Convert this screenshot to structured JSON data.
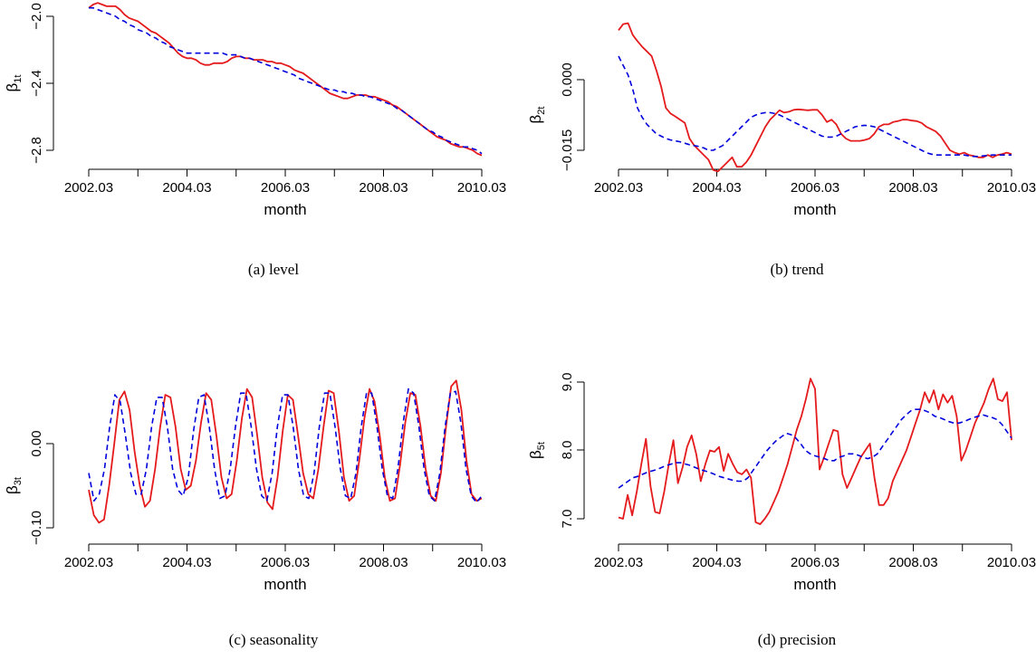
{
  "figure": {
    "x_axis_label": "month",
    "x_ticks": [
      "2002.03",
      "2004.03",
      "2006.03",
      "2008.03",
      "2010.03"
    ],
    "colors": {
      "series_1": "#e41a1c",
      "series_2": "#0000dd"
    }
  },
  "chart_data": [
    {
      "type": "line",
      "id": "a",
      "caption": "(a) level",
      "ylabel": {
        "symbol": "β",
        "sub": "1t"
      },
      "xlabel": "month",
      "x_start": "2002.03",
      "x_step": "1 month",
      "y_ticks": [
        "−2.0",
        "−2.4",
        "−2.8"
      ],
      "ylim": [
        -2.84,
        -1.94
      ],
      "series": [
        {
          "style": "solid red",
          "values": [
            -1.95,
            -1.93,
            -1.92,
            -1.93,
            -1.94,
            -1.94,
            -1.94,
            -1.96,
            -1.99,
            -2.01,
            -2.02,
            -2.03,
            -2.05,
            -2.07,
            -2.09,
            -2.1,
            -2.12,
            -2.14,
            -2.16,
            -2.19,
            -2.22,
            -2.24,
            -2.25,
            -2.25,
            -2.26,
            -2.28,
            -2.29,
            -2.29,
            -2.28,
            -2.28,
            -2.28,
            -2.27,
            -2.25,
            -2.24,
            -2.24,
            -2.25,
            -2.25,
            -2.26,
            -2.26,
            -2.26,
            -2.27,
            -2.27,
            -2.28,
            -2.28,
            -2.29,
            -2.3,
            -2.32,
            -2.33,
            -2.34,
            -2.36,
            -2.38,
            -2.4,
            -2.42,
            -2.44,
            -2.46,
            -2.47,
            -2.48,
            -2.49,
            -2.49,
            -2.48,
            -2.47,
            -2.47,
            -2.47,
            -2.48,
            -2.48,
            -2.49,
            -2.5,
            -2.51,
            -2.53,
            -2.54,
            -2.56,
            -2.58,
            -2.6,
            -2.62,
            -2.64,
            -2.66,
            -2.68,
            -2.7,
            -2.72,
            -2.73,
            -2.74,
            -2.76,
            -2.77,
            -2.78,
            -2.78,
            -2.79,
            -2.8,
            -2.82,
            -2.83
          ]
        },
        {
          "style": "dashed blue",
          "values": [
            -1.95,
            -1.95,
            -1.96,
            -1.97,
            -1.98,
            -1.99,
            -2.0,
            -2.02,
            -2.03,
            -2.05,
            -2.06,
            -2.08,
            -2.09,
            -2.1,
            -2.12,
            -2.13,
            -2.15,
            -2.16,
            -2.18,
            -2.19,
            -2.2,
            -2.21,
            -2.22,
            -2.22,
            -2.22,
            -2.22,
            -2.22,
            -2.22,
            -2.22,
            -2.22,
            -2.22,
            -2.23,
            -2.23,
            -2.23,
            -2.24,
            -2.25,
            -2.25,
            -2.26,
            -2.27,
            -2.28,
            -2.29,
            -2.3,
            -2.31,
            -2.32,
            -2.33,
            -2.34,
            -2.35,
            -2.37,
            -2.38,
            -2.39,
            -2.4,
            -2.41,
            -2.42,
            -2.43,
            -2.44,
            -2.44,
            -2.45,
            -2.45,
            -2.46,
            -2.46,
            -2.47,
            -2.47,
            -2.48,
            -2.48,
            -2.49,
            -2.5,
            -2.51,
            -2.52,
            -2.53,
            -2.55,
            -2.56,
            -2.58,
            -2.6,
            -2.62,
            -2.64,
            -2.66,
            -2.68,
            -2.69,
            -2.71,
            -2.72,
            -2.74,
            -2.75,
            -2.76,
            -2.77,
            -2.78,
            -2.78,
            -2.79,
            -2.8,
            -2.82
          ]
        }
      ]
    },
    {
      "type": "line",
      "id": "b",
      "caption": "(b) trend",
      "ylabel": {
        "symbol": "β",
        "sub": "2t"
      },
      "xlabel": "month",
      "x_start": "2002.03",
      "x_step": "1 month",
      "y_ticks": [
        "0.000",
        "−0.015"
      ],
      "ylim": [
        -0.0195,
        0.0118
      ],
      "series": [
        {
          "style": "solid red",
          "values": [
            0.0105,
            0.0118,
            0.012,
            0.0095,
            0.0082,
            0.007,
            0.006,
            0.005,
            0.002,
            -0.0015,
            -0.006,
            -0.0072,
            -0.0078,
            -0.0085,
            -0.0092,
            -0.0125,
            -0.014,
            -0.015,
            -0.016,
            -0.017,
            -0.0192,
            -0.0195,
            -0.0185,
            -0.0175,
            -0.0165,
            -0.0185,
            -0.0185,
            -0.0175,
            -0.016,
            -0.014,
            -0.012,
            -0.01,
            -0.0085,
            -0.0075,
            -0.0065,
            -0.007,
            -0.0068,
            -0.0064,
            -0.0063,
            -0.0064,
            -0.0065,
            -0.0064,
            -0.0064,
            -0.0075,
            -0.009,
            -0.0085,
            -0.0095,
            -0.0115,
            -0.0125,
            -0.013,
            -0.013,
            -0.013,
            -0.0128,
            -0.0125,
            -0.0115,
            -0.01,
            -0.0095,
            -0.0095,
            -0.009,
            -0.0088,
            -0.0085,
            -0.0085,
            -0.0087,
            -0.0088,
            -0.0092,
            -0.01,
            -0.0105,
            -0.011,
            -0.012,
            -0.0135,
            -0.015,
            -0.0155,
            -0.0158,
            -0.0155,
            -0.016,
            -0.0162,
            -0.0165,
            -0.0165,
            -0.016,
            -0.0165,
            -0.016,
            -0.0158,
            -0.0155,
            -0.0158
          ]
        },
        {
          "style": "dashed blue",
          "values": [
            0.005,
            0.003,
            0.001,
            -0.002,
            -0.006,
            -0.008,
            -0.0095,
            -0.0105,
            -0.0115,
            -0.012,
            -0.0125,
            -0.0128,
            -0.013,
            -0.0132,
            -0.0135,
            -0.0138,
            -0.014,
            -0.0142,
            -0.0145,
            -0.015,
            -0.015,
            -0.0145,
            -0.014,
            -0.013,
            -0.012,
            -0.011,
            -0.01,
            -0.009,
            -0.008,
            -0.0075,
            -0.0072,
            -0.007,
            -0.007,
            -0.0072,
            -0.0075,
            -0.008,
            -0.0085,
            -0.009,
            -0.0095,
            -0.01,
            -0.0105,
            -0.011,
            -0.0115,
            -0.012,
            -0.0122,
            -0.0122,
            -0.012,
            -0.0115,
            -0.011,
            -0.0105,
            -0.01,
            -0.0098,
            -0.0097,
            -0.0098,
            -0.01,
            -0.0105,
            -0.011,
            -0.0115,
            -0.012,
            -0.0125,
            -0.013,
            -0.0135,
            -0.014,
            -0.0145,
            -0.015,
            -0.0155,
            -0.0158,
            -0.016,
            -0.016,
            -0.016,
            -0.016,
            -0.016,
            -0.016,
            -0.016,
            -0.0162,
            -0.0163,
            -0.0163,
            -0.0162,
            -0.0161,
            -0.016,
            -0.016,
            -0.016,
            -0.016,
            -0.016
          ]
        }
      ]
    },
    {
      "type": "line",
      "id": "c",
      "caption": "(c) seasonality",
      "ylabel": {
        "symbol": "β",
        "sub": "3t"
      },
      "xlabel": "month",
      "x_start": "2002.03",
      "x_step": "1 month",
      "y_ticks": [
        "0.00",
        "−0.10"
      ],
      "ylim": [
        -0.1,
        0.06
      ],
      "series": [
        {
          "style": "solid red",
          "values": [
            -0.055,
            -0.085,
            -0.094,
            -0.09,
            -0.05,
            0.0,
            0.052,
            0.062,
            0.04,
            -0.01,
            -0.05,
            -0.075,
            -0.068,
            -0.03,
            0.02,
            0.058,
            0.055,
            0.02,
            -0.03,
            -0.055,
            -0.05,
            -0.02,
            0.025,
            0.06,
            0.052,
            0.01,
            -0.04,
            -0.065,
            -0.06,
            -0.02,
            0.03,
            0.065,
            0.055,
            0.01,
            -0.04,
            -0.07,
            -0.078,
            -0.04,
            0.015,
            0.058,
            0.052,
            0.01,
            -0.035,
            -0.06,
            -0.065,
            -0.03,
            0.02,
            0.063,
            0.06,
            0.015,
            -0.04,
            -0.068,
            -0.062,
            -0.02,
            0.03,
            0.065,
            0.05,
            0.01,
            -0.04,
            -0.068,
            -0.065,
            -0.025,
            0.025,
            0.06,
            0.058,
            0.02,
            -0.03,
            -0.062,
            -0.068,
            -0.035,
            0.02,
            0.068,
            0.075,
            0.04,
            -0.02,
            -0.06,
            -0.068,
            -0.065
          ]
        },
        {
          "style": "dashed blue",
          "values": [
            -0.035,
            -0.068,
            -0.06,
            -0.03,
            0.02,
            0.058,
            0.05,
            0.01,
            -0.035,
            -0.06,
            -0.06,
            -0.03,
            0.02,
            0.055,
            0.055,
            0.02,
            -0.03,
            -0.055,
            -0.062,
            -0.04,
            0.015,
            0.055,
            0.058,
            0.02,
            -0.03,
            -0.065,
            -0.062,
            -0.03,
            0.02,
            0.06,
            0.06,
            0.02,
            -0.03,
            -0.062,
            -0.068,
            -0.035,
            0.02,
            0.058,
            0.058,
            0.02,
            -0.03,
            -0.062,
            -0.065,
            -0.035,
            0.02,
            0.06,
            0.06,
            0.02,
            -0.03,
            -0.062,
            -0.065,
            -0.035,
            0.02,
            0.06,
            0.06,
            0.02,
            -0.03,
            -0.062,
            -0.065,
            -0.03,
            0.025,
            0.065,
            0.06,
            0.02,
            -0.03,
            -0.062,
            -0.068,
            -0.035,
            0.02,
            0.06,
            0.062,
            0.025,
            -0.03,
            -0.062,
            -0.07,
            -0.062
          ]
        }
      ]
    },
    {
      "type": "line",
      "id": "d",
      "caption": "(d) precision",
      "ylabel": {
        "symbol": "β",
        "sub": "5t"
      },
      "xlabel": "month",
      "x_start": "2002.03",
      "x_step": "1 month",
      "y_ticks": [
        "9.0",
        "8.0",
        "7.0"
      ],
      "ylim": [
        6.9,
        9.05
      ],
      "series": [
        {
          "style": "solid red",
          "values": [
            7.02,
            7.0,
            7.35,
            7.05,
            7.4,
            7.8,
            8.17,
            7.48,
            7.1,
            7.08,
            7.4,
            7.8,
            8.15,
            7.52,
            7.75,
            8.05,
            8.22,
            7.95,
            7.55,
            7.8,
            8.0,
            7.98,
            8.05,
            7.7,
            7.95,
            7.8,
            7.68,
            7.65,
            7.72,
            7.6,
            6.95,
            6.92,
            7.0,
            7.1,
            7.25,
            7.4,
            7.6,
            7.8,
            8.05,
            8.3,
            8.5,
            8.75,
            9.05,
            8.9,
            7.72,
            7.9,
            8.1,
            8.3,
            8.28,
            7.65,
            7.45,
            7.6,
            7.75,
            7.9,
            8.0,
            8.1,
            7.6,
            7.2,
            7.2,
            7.3,
            7.55,
            7.7,
            7.85,
            8.0,
            8.2,
            8.4,
            8.6,
            8.85,
            8.7,
            8.88,
            8.6,
            8.82,
            8.7,
            8.8,
            8.5,
            7.85,
            8.0,
            8.2,
            8.4,
            8.55,
            8.7,
            8.9,
            9.05,
            8.75,
            8.72,
            8.85,
            8.15
          ]
        },
        {
          "style": "dashed blue",
          "values": [
            7.45,
            7.5,
            7.55,
            7.6,
            7.62,
            7.65,
            7.68,
            7.7,
            7.72,
            7.75,
            7.78,
            7.8,
            7.82,
            7.82,
            7.8,
            7.78,
            7.75,
            7.72,
            7.7,
            7.68,
            7.65,
            7.62,
            7.6,
            7.58,
            7.56,
            7.55,
            7.55,
            7.6,
            7.7,
            7.8,
            7.9,
            8.0,
            8.08,
            8.15,
            8.2,
            8.25,
            8.23,
            8.18,
            8.1,
            8.0,
            7.95,
            7.92,
            7.9,
            7.88,
            7.85,
            7.85,
            7.9,
            7.92,
            7.95,
            7.95,
            7.93,
            7.9,
            7.88,
            7.9,
            7.95,
            8.05,
            8.15,
            8.25,
            8.35,
            8.45,
            8.52,
            8.58,
            8.6,
            8.6,
            8.58,
            8.55,
            8.5,
            8.48,
            8.45,
            8.42,
            8.4,
            8.4,
            8.42,
            8.45,
            8.48,
            8.5,
            8.52,
            8.5,
            8.48,
            8.45,
            8.38,
            8.28,
            8.18
          ]
        }
      ]
    }
  ]
}
